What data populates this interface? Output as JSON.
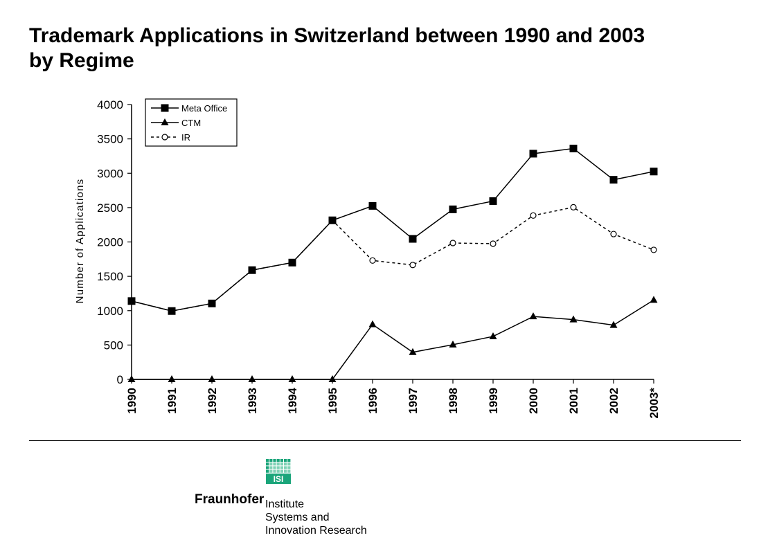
{
  "title_lines": [
    "Trademark Applications  in Switzerland between 1990 and 2003",
    "by Regime"
  ],
  "chart_data": {
    "type": "line",
    "title": "Trademark Applications  in Switzerland between 1990 and 2003 by Regime",
    "xlabel": "",
    "ylabel": "Number of Applications",
    "categories": [
      "1990",
      "1991",
      "1992",
      "1993",
      "1994",
      "1995",
      "1996",
      "1997",
      "1998",
      "1999",
      "2000",
      "2001",
      "2002",
      "2003*"
    ],
    "ylim": [
      0,
      4000
    ],
    "yticks": [
      0,
      500,
      1000,
      1500,
      2000,
      2500,
      3000,
      3500,
      4000
    ],
    "grid": false,
    "legend_position": "top-left",
    "series": [
      {
        "name": "Meta Office",
        "marker": "square",
        "line": "solid",
        "values": [
          1140,
          995,
          1105,
          1590,
          1700,
          2315,
          2525,
          2045,
          2475,
          2595,
          3285,
          3360,
          2905,
          3025
        ]
      },
      {
        "name": "CTM",
        "marker": "triangle",
        "line": "solid",
        "values": [
          0,
          0,
          0,
          0,
          0,
          0,
          800,
          395,
          505,
          625,
          915,
          870,
          790,
          1155
        ]
      },
      {
        "name": "IR",
        "marker": "circle-open",
        "line": "dashed",
        "values": [
          1140,
          995,
          1105,
          1590,
          1700,
          2315,
          1730,
          1665,
          1985,
          1975,
          2385,
          2505,
          2115,
          1885
        ]
      }
    ]
  },
  "footer": {
    "logo_text": "ISI",
    "brand": "Fraunhofer",
    "institute_lines": [
      "Institute",
      "Systems and",
      "Innovation Research"
    ],
    "logo_color": "#1aa57a"
  }
}
